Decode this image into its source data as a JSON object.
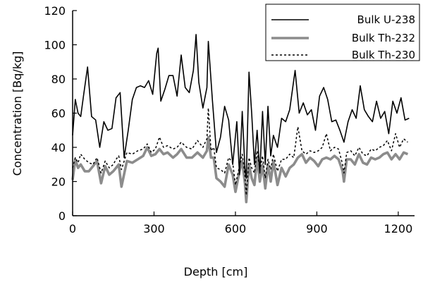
{
  "chart_data": {
    "type": "line",
    "xlabel": "Depth [cm]",
    "ylabel": "Concentration [Bq/kg]",
    "xlim": [
      0,
      1260
    ],
    "ylim": [
      0,
      120
    ],
    "x_ticks": [
      0,
      300,
      600,
      900,
      1200
    ],
    "y_ticks": [
      0,
      20,
      40,
      60,
      80,
      100,
      120
    ],
    "grid": false,
    "legend_position": "top-right",
    "series": [
      {
        "name": "Bulk U-238",
        "style": "solid",
        "color": "#000000",
        "x": [
          0,
          10,
          20,
          30,
          40,
          55,
          70,
          85,
          100,
          115,
          130,
          145,
          160,
          175,
          190,
          205,
          220,
          235,
          250,
          265,
          280,
          295,
          310,
          315,
          325,
          340,
          355,
          370,
          385,
          400,
          415,
          430,
          445,
          455,
          465,
          480,
          495,
          500,
          515,
          530,
          545,
          560,
          575,
          590,
          605,
          615,
          625,
          635,
          640,
          650,
          660,
          670,
          680,
          690,
          700,
          710,
          720,
          730,
          740,
          755,
          770,
          785,
          800,
          820,
          835,
          850,
          865,
          880,
          895,
          910,
          925,
          940,
          955,
          970,
          985,
          1000,
          1015,
          1030,
          1045,
          1060,
          1075,
          1090,
          1105,
          1120,
          1135,
          1150,
          1165,
          1180,
          1195,
          1210,
          1225,
          1240
        ],
        "y": [
          47,
          68,
          60,
          58,
          70,
          87,
          58,
          56,
          40,
          55,
          50,
          51,
          69,
          72,
          34,
          50,
          68,
          75,
          76,
          75,
          79,
          71,
          95,
          98,
          67,
          74,
          82,
          82,
          70,
          94,
          75,
          72,
          85,
          106,
          78,
          63,
          75,
          102,
          68,
          37,
          46,
          64,
          56,
          30,
          55,
          24,
          61,
          28,
          22,
          84,
          60,
          30,
          50,
          25,
          61,
          30,
          64,
          35,
          47,
          40,
          57,
          55,
          62,
          85,
          60,
          66,
          59,
          62,
          50,
          70,
          75,
          68,
          55,
          56,
          50,
          43,
          55,
          62,
          57,
          76,
          62,
          58,
          55,
          67,
          57,
          61,
          48,
          67,
          60,
          69,
          56,
          57
        ]
      },
      {
        "name": "Bulk Th-232",
        "style": "thick-gray",
        "color": "#8c8c8c",
        "x": [
          0,
          10,
          20,
          30,
          45,
          60,
          75,
          90,
          105,
          120,
          135,
          150,
          160,
          170,
          180,
          200,
          220,
          240,
          260,
          275,
          290,
          305,
          320,
          335,
          350,
          370,
          385,
          400,
          420,
          440,
          460,
          480,
          495,
          500,
          510,
          520,
          530,
          545,
          560,
          575,
          590,
          600,
          615,
          625,
          635,
          640,
          650,
          660,
          670,
          680,
          690,
          700,
          710,
          720,
          730,
          740,
          755,
          770,
          785,
          800,
          815,
          830,
          845,
          860,
          875,
          890,
          905,
          920,
          935,
          950,
          965,
          980,
          995,
          1000,
          1010,
          1025,
          1040,
          1055,
          1070,
          1085,
          1100,
          1115,
          1130,
          1145,
          1160,
          1175,
          1190,
          1205,
          1220,
          1235
        ],
        "y": [
          21,
          33,
          28,
          30,
          26,
          26,
          29,
          32,
          19,
          29,
          24,
          26,
          28,
          30,
          17,
          32,
          31,
          33,
          35,
          40,
          35,
          36,
          39,
          36,
          37,
          34,
          36,
          39,
          34,
          34,
          37,
          34,
          38,
          46,
          34,
          34,
          22,
          20,
          17,
          30,
          24,
          14,
          26,
          32,
          19,
          8,
          30,
          22,
          18,
          34,
          20,
          30,
          16,
          30,
          20,
          32,
          18,
          28,
          23,
          28,
          30,
          34,
          36,
          31,
          34,
          32,
          29,
          33,
          34,
          33,
          35,
          33,
          26,
          20,
          33,
          33,
          30,
          36,
          31,
          30,
          34,
          33,
          34,
          36,
          37,
          33,
          36,
          33,
          37,
          36
        ]
      },
      {
        "name": "Bulk Th-230",
        "style": "dashed",
        "color": "#000000",
        "x": [
          0,
          10,
          20,
          30,
          45,
          60,
          75,
          90,
          105,
          120,
          135,
          150,
          160,
          170,
          180,
          200,
          220,
          240,
          260,
          275,
          290,
          305,
          320,
          335,
          350,
          370,
          385,
          400,
          420,
          440,
          460,
          480,
          495,
          500,
          510,
          520,
          530,
          545,
          560,
          575,
          590,
          600,
          615,
          625,
          635,
          640,
          650,
          660,
          670,
          680,
          690,
          700,
          710,
          720,
          730,
          740,
          755,
          770,
          785,
          800,
          815,
          830,
          845,
          860,
          875,
          890,
          905,
          920,
          935,
          950,
          965,
          980,
          995,
          1000,
          1010,
          1025,
          1040,
          1055,
          1070,
          1085,
          1100,
          1115,
          1130,
          1145,
          1160,
          1175,
          1190,
          1205,
          1220,
          1235
        ],
        "y": [
          28,
          34,
          31,
          36,
          33,
          31,
          30,
          34,
          25,
          32,
          28,
          30,
          33,
          35,
          27,
          37,
          36,
          38,
          39,
          42,
          37,
          39,
          46,
          40,
          41,
          39,
          40,
          43,
          40,
          39,
          44,
          40,
          45,
          63,
          38,
          40,
          28,
          27,
          25,
          34,
          31,
          18,
          29,
          36,
          24,
          12,
          34,
          28,
          25,
          38,
          27,
          35,
          22,
          33,
          27,
          36,
          26,
          33,
          33,
          36,
          34,
          52,
          38,
          36,
          38,
          37,
          38,
          40,
          48,
          38,
          40,
          39,
          30,
          25,
          37,
          38,
          35,
          40,
          36,
          35,
          39,
          38,
          40,
          41,
          44,
          38,
          48,
          40,
          45,
          43
        ]
      }
    ]
  }
}
